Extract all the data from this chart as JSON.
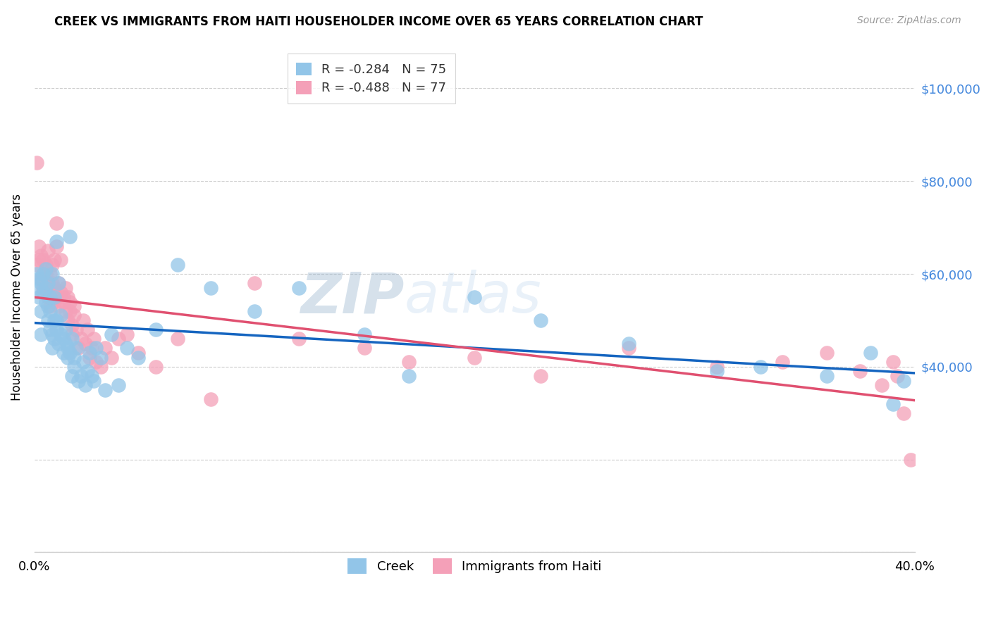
{
  "title": "CREEK VS IMMIGRANTS FROM HAITI HOUSEHOLDER INCOME OVER 65 YEARS CORRELATION CHART",
  "source": "Source: ZipAtlas.com",
  "ylabel": "Householder Income Over 65 years",
  "x_min": 0.0,
  "x_max": 0.4,
  "y_min": 0,
  "y_max": 110000,
  "x_ticks": [
    0.0,
    0.1,
    0.2,
    0.3,
    0.4
  ],
  "x_tick_labels": [
    "0.0%",
    "",
    "",
    "",
    "40.0%"
  ],
  "y_ticks": [
    0,
    20000,
    40000,
    60000,
    80000,
    100000
  ],
  "y_tick_labels": [
    "",
    "",
    "$40,000",
    "$60,000",
    "$80,000",
    "$100,000"
  ],
  "creek_color": "#92C5E8",
  "haiti_color": "#F4A0B8",
  "creek_line_color": "#1565C0",
  "haiti_line_color": "#E05070",
  "creek_R": -0.284,
  "creek_N": 75,
  "haiti_R": -0.488,
  "haiti_N": 77,
  "watermark_zip": "ZIP",
  "watermark_atlas": "atlas",
  "legend_creek": "Creek",
  "legend_haiti": "Immigrants from Haiti",
  "creek_x": [
    0.001,
    0.001,
    0.002,
    0.002,
    0.003,
    0.003,
    0.003,
    0.004,
    0.004,
    0.005,
    0.005,
    0.005,
    0.006,
    0.006,
    0.006,
    0.007,
    0.007,
    0.007,
    0.008,
    0.008,
    0.008,
    0.009,
    0.009,
    0.009,
    0.01,
    0.01,
    0.01,
    0.011,
    0.011,
    0.012,
    0.012,
    0.013,
    0.013,
    0.014,
    0.014,
    0.015,
    0.015,
    0.016,
    0.016,
    0.017,
    0.017,
    0.018,
    0.018,
    0.019,
    0.02,
    0.021,
    0.022,
    0.023,
    0.024,
    0.025,
    0.026,
    0.027,
    0.028,
    0.03,
    0.032,
    0.035,
    0.038,
    0.042,
    0.047,
    0.055,
    0.065,
    0.08,
    0.1,
    0.12,
    0.15,
    0.17,
    0.2,
    0.23,
    0.27,
    0.31,
    0.33,
    0.36,
    0.38,
    0.39,
    0.395
  ],
  "creek_y": [
    60000,
    57000,
    59000,
    55000,
    58000,
    52000,
    47000,
    56000,
    60000,
    61000,
    54000,
    57000,
    53000,
    58000,
    50000,
    55000,
    48000,
    52000,
    60000,
    47000,
    44000,
    50000,
    55000,
    46000,
    48000,
    67000,
    50000,
    58000,
    45000,
    47000,
    51000,
    46000,
    43000,
    45000,
    48000,
    42000,
    44000,
    68000,
    43000,
    46000,
    38000,
    42000,
    40000,
    44000,
    37000,
    38000,
    41000,
    36000,
    39000,
    43000,
    38000,
    37000,
    44000,
    42000,
    35000,
    47000,
    36000,
    44000,
    42000,
    48000,
    62000,
    57000,
    52000,
    57000,
    47000,
    38000,
    55000,
    50000,
    45000,
    39000,
    40000,
    38000,
    43000,
    32000,
    37000
  ],
  "haiti_x": [
    0.001,
    0.001,
    0.002,
    0.002,
    0.003,
    0.003,
    0.004,
    0.004,
    0.005,
    0.005,
    0.005,
    0.006,
    0.006,
    0.006,
    0.007,
    0.007,
    0.007,
    0.008,
    0.008,
    0.008,
    0.009,
    0.009,
    0.009,
    0.01,
    0.01,
    0.01,
    0.011,
    0.011,
    0.012,
    0.012,
    0.013,
    0.013,
    0.014,
    0.014,
    0.015,
    0.015,
    0.016,
    0.016,
    0.017,
    0.017,
    0.018,
    0.018,
    0.019,
    0.02,
    0.021,
    0.022,
    0.023,
    0.024,
    0.025,
    0.026,
    0.027,
    0.028,
    0.03,
    0.032,
    0.035,
    0.038,
    0.042,
    0.047,
    0.055,
    0.065,
    0.08,
    0.1,
    0.12,
    0.15,
    0.17,
    0.2,
    0.23,
    0.27,
    0.31,
    0.34,
    0.36,
    0.375,
    0.385,
    0.39,
    0.392,
    0.395,
    0.398
  ],
  "haiti_y": [
    84000,
    62000,
    63000,
    66000,
    64000,
    59000,
    57000,
    63000,
    60000,
    62000,
    57000,
    65000,
    55000,
    58000,
    56000,
    53000,
    60000,
    55000,
    58000,
    62000,
    54000,
    57000,
    63000,
    71000,
    55000,
    66000,
    58000,
    53000,
    56000,
    63000,
    54000,
    55000,
    52000,
    57000,
    55000,
    50000,
    52000,
    54000,
    49000,
    47000,
    53000,
    51000,
    48000,
    44000,
    46000,
    50000,
    45000,
    48000,
    42000,
    44000,
    46000,
    41000,
    40000,
    44000,
    42000,
    46000,
    47000,
    43000,
    40000,
    46000,
    33000,
    58000,
    46000,
    44000,
    41000,
    42000,
    38000,
    44000,
    40000,
    41000,
    43000,
    39000,
    36000,
    41000,
    38000,
    30000,
    20000
  ]
}
